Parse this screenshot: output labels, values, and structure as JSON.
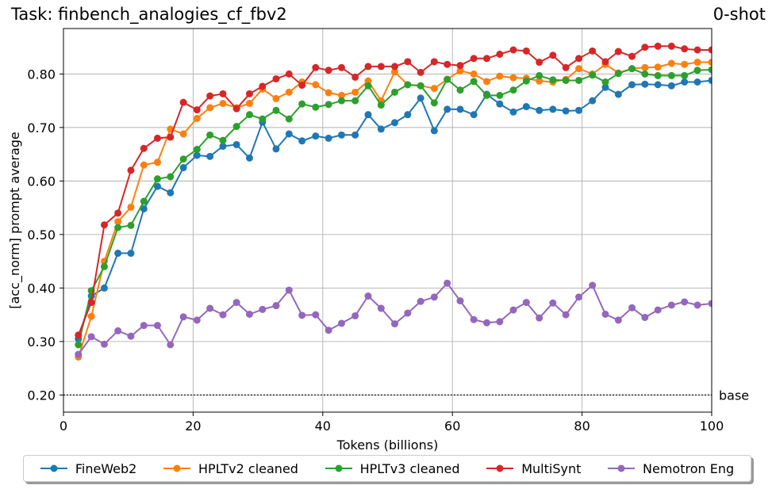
{
  "header": {
    "task_title": "Task: finbench_analogies_cf_fbv2",
    "shot_label": "0-shot"
  },
  "chart_data": {
    "type": "line",
    "xlabel": "Tokens (billions)",
    "ylabel": "[acc_norm] prompt average",
    "xlim": [
      0,
      100
    ],
    "ylim": [
      0.168,
      0.885
    ],
    "x_ticks": [
      0,
      20,
      40,
      60,
      80,
      100
    ],
    "x_tick_labels": [
      "0",
      "20",
      "40",
      "60",
      "80",
      "100"
    ],
    "y_ticks": [
      0.2,
      0.3,
      0.4,
      0.5,
      0.6,
      0.7,
      0.8
    ],
    "y_tick_labels": [
      "0.20",
      "0.30",
      "0.40",
      "0.50",
      "0.60",
      "0.70",
      "0.80"
    ],
    "grid": true,
    "legend_position": "bottom-center",
    "baseline": {
      "label": "base",
      "value": 0.2,
      "color": "#333333"
    },
    "x": [
      2.3,
      4.3,
      6.3,
      8.4,
      10.4,
      12.4,
      14.5,
      16.5,
      18.5,
      20.6,
      22.6,
      24.6,
      26.7,
      28.7,
      30.7,
      32.8,
      34.8,
      36.8,
      38.9,
      40.9,
      42.9,
      45.0,
      47.0,
      49.0,
      51.1,
      53.1,
      55.1,
      57.2,
      59.2,
      61.2,
      63.3,
      65.3,
      67.3,
      69.4,
      71.4,
      73.4,
      75.5,
      77.5,
      79.5,
      81.6,
      83.6,
      85.6,
      87.7,
      89.7,
      91.7,
      93.8,
      95.8,
      97.8,
      100.0
    ],
    "series": [
      {
        "name": "FineWeb2",
        "color": "#1f77b4",
        "values": [
          0.305,
          0.385,
          0.4,
          0.465,
          0.465,
          0.548,
          0.59,
          0.578,
          0.625,
          0.648,
          0.646,
          0.665,
          0.668,
          0.643,
          0.71,
          0.66,
          0.688,
          0.675,
          0.684,
          0.68,
          0.686,
          0.686,
          0.724,
          0.697,
          0.709,
          0.724,
          0.755,
          0.694,
          0.734,
          0.734,
          0.724,
          0.762,
          0.744,
          0.729,
          0.739,
          0.732,
          0.734,
          0.731,
          0.732,
          0.75,
          0.775,
          0.762,
          0.78,
          0.781,
          0.78,
          0.778,
          0.785,
          0.785,
          0.788
        ]
      },
      {
        "name": "HPLTv2 cleaned",
        "color": "#ff7f0e",
        "values": [
          0.271,
          0.347,
          0.45,
          0.524,
          0.551,
          0.63,
          0.635,
          0.697,
          0.688,
          0.717,
          0.737,
          0.745,
          0.737,
          0.745,
          0.772,
          0.754,
          0.766,
          0.785,
          0.78,
          0.765,
          0.76,
          0.766,
          0.787,
          0.75,
          0.804,
          0.78,
          0.778,
          0.773,
          0.79,
          0.806,
          0.8,
          0.786,
          0.796,
          0.793,
          0.792,
          0.787,
          0.785,
          0.79,
          0.81,
          0.8,
          0.818,
          0.802,
          0.81,
          0.812,
          0.813,
          0.82,
          0.818,
          0.822,
          0.822
        ]
      },
      {
        "name": "HPLTv3 cleaned",
        "color": "#2ca02c",
        "values": [
          0.294,
          0.395,
          0.44,
          0.513,
          0.517,
          0.562,
          0.604,
          0.608,
          0.641,
          0.659,
          0.686,
          0.676,
          0.702,
          0.724,
          0.716,
          0.732,
          0.716,
          0.744,
          0.738,
          0.743,
          0.75,
          0.75,
          0.778,
          0.742,
          0.766,
          0.78,
          0.778,
          0.746,
          0.79,
          0.77,
          0.786,
          0.76,
          0.76,
          0.77,
          0.787,
          0.797,
          0.789,
          0.788,
          0.788,
          0.798,
          0.785,
          0.801,
          0.81,
          0.8,
          0.797,
          0.797,
          0.797,
          0.807,
          0.808
        ]
      },
      {
        "name": "MultiSynt",
        "color": "#d62728",
        "values": [
          0.312,
          0.373,
          0.518,
          0.54,
          0.62,
          0.661,
          0.68,
          0.682,
          0.747,
          0.733,
          0.759,
          0.763,
          0.735,
          0.763,
          0.777,
          0.791,
          0.8,
          0.779,
          0.812,
          0.807,
          0.812,
          0.794,
          0.814,
          0.814,
          0.814,
          0.823,
          0.803,
          0.823,
          0.818,
          0.816,
          0.829,
          0.829,
          0.837,
          0.845,
          0.843,
          0.822,
          0.835,
          0.812,
          0.829,
          0.843,
          0.823,
          0.842,
          0.833,
          0.85,
          0.852,
          0.852,
          0.847,
          0.845,
          0.845
        ]
      },
      {
        "name": "Nemotron Eng",
        "color": "#9467bd",
        "values": [
          0.276,
          0.309,
          0.295,
          0.32,
          0.31,
          0.33,
          0.33,
          0.294,
          0.346,
          0.34,
          0.362,
          0.35,
          0.373,
          0.351,
          0.36,
          0.367,
          0.396,
          0.349,
          0.35,
          0.321,
          0.334,
          0.348,
          0.385,
          0.362,
          0.333,
          0.353,
          0.375,
          0.383,
          0.409,
          0.376,
          0.341,
          0.335,
          0.337,
          0.359,
          0.373,
          0.344,
          0.372,
          0.35,
          0.383,
          0.405,
          0.351,
          0.34,
          0.363,
          0.345,
          0.359,
          0.368,
          0.374,
          0.368,
          0.371
        ]
      }
    ]
  }
}
